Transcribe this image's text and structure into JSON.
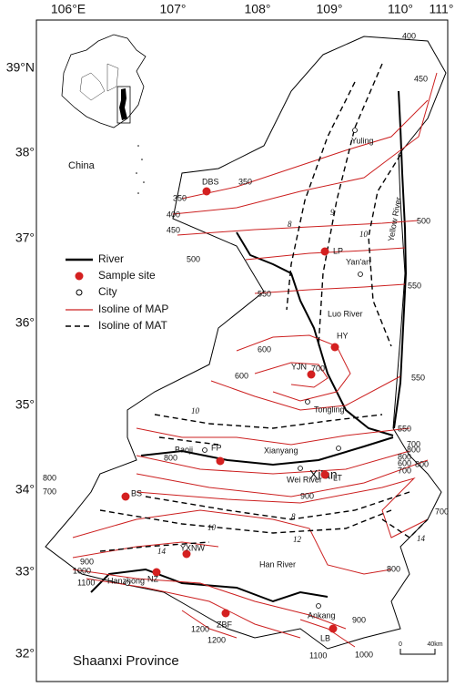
{
  "axes": {
    "lon": [
      "106°E",
      "107°",
      "108°",
      "109°",
      "110°",
      "111°"
    ],
    "lat": [
      "39°N",
      "38°",
      "37°",
      "36°",
      "35°",
      "34°",
      "33°",
      "32°"
    ]
  },
  "inset_label": "China",
  "legend": [
    "River",
    "Sample site",
    "City",
    "Isoline of MAP",
    "Isoline of MAT"
  ],
  "sample_sites": [
    "DBS",
    "LP",
    "HY",
    "YJN",
    "FP",
    "LT",
    "BS",
    "YXNW",
    "NZ",
    "ZBF",
    "LB"
  ],
  "cities": [
    "Yuling",
    "Yan'an",
    "Tongling",
    "Baoji",
    "Xianyang",
    "Xi'an",
    "Hanzhong",
    "Ankang"
  ],
  "rivers": [
    "Yellow River",
    "Luo River",
    "Wei River",
    "Han River"
  ],
  "map_isoline_labels": [
    400,
    450,
    350,
    350,
    400,
    450,
    500,
    500,
    550,
    550,
    600,
    700,
    600,
    550,
    550,
    700,
    800,
    600,
    700,
    800,
    800,
    700,
    900,
    800,
    700,
    800,
    900,
    1000,
    1100,
    1200,
    1200,
    1100,
    1000,
    900,
    800
  ],
  "mat_isoline_labels": [
    8,
    9,
    10,
    10,
    8,
    10,
    12,
    14,
    14
  ],
  "scale": [
    "0",
    "40km"
  ],
  "title": "Shaanxi Province"
}
